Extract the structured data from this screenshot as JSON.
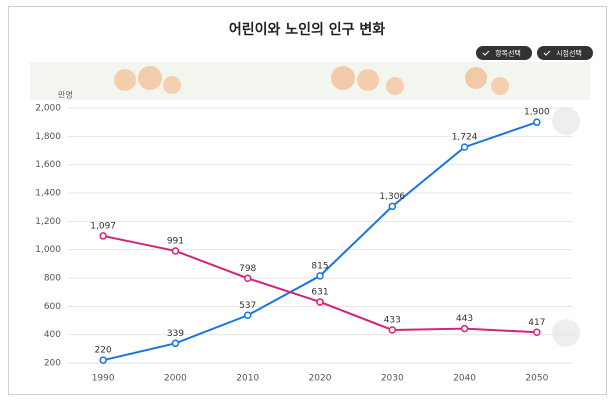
{
  "chart_data": {
    "type": "line",
    "title": "어린이와 노인의 인구 변화",
    "buttons": [
      "항목선택",
      "시점선택"
    ],
    "y_unit": "만명",
    "categories": [
      "1990",
      "2000",
      "2010",
      "2020",
      "2030",
      "2040",
      "2050"
    ],
    "series": [
      {
        "color": "#1a73e8",
        "values": [
          220,
          339,
          537,
          815,
          1306,
          1724,
          1900
        ],
        "value_labels": [
          "220",
          "339",
          "537",
          "815",
          "1,306",
          "1,724",
          "1,900"
        ]
      },
      {
        "color": "#d3247a",
        "values": [
          1097,
          991,
          798,
          631,
          433,
          443,
          417
        ],
        "value_labels": [
          "1,097",
          "991",
          "798",
          "631",
          "433",
          "443",
          "417"
        ]
      }
    ],
    "ylim": [
      200,
      2000
    ],
    "yticks": [
      200,
      400,
      600,
      800,
      {
        "value": 1000,
        "label": "1,000"
      },
      {
        "value": 1200,
        "label": "1,200"
      },
      {
        "value": 1400,
        "label": "1,400"
      },
      {
        "value": 1600,
        "label": "1,600"
      },
      {
        "value": 1800,
        "label": "1,800"
      },
      {
        "value": 2000,
        "label": "2,000"
      }
    ],
    "grid": true
  }
}
